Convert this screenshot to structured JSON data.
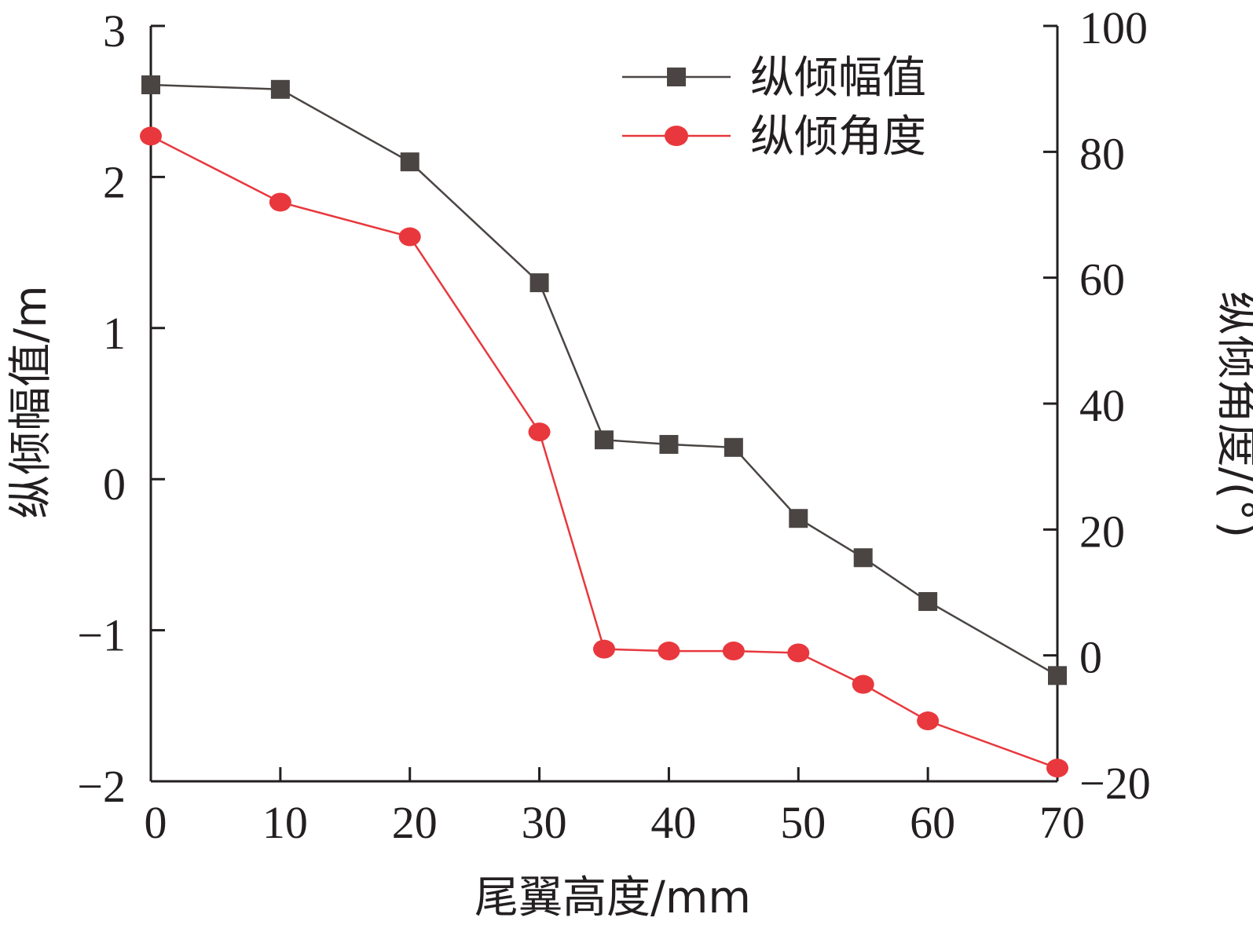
{
  "chart_data": {
    "type": "line",
    "xlabel": "尾翼高度/mm",
    "ylabel_left": "纵倾幅值/m",
    "ylabel_right": "纵倾角度/(°)",
    "xlim": [
      0,
      70
    ],
    "ylim_left": [
      -2,
      3
    ],
    "ylim_right": [
      -20,
      100
    ],
    "x_ticks": [
      "0",
      "10",
      "20",
      "30",
      "40",
      "50",
      "60",
      "70"
    ],
    "y_left_ticks": [
      "3",
      "2",
      "1",
      "0",
      "−1",
      "−2"
    ],
    "y_right_ticks": [
      "100",
      "80",
      "60",
      "40",
      "20",
      "0",
      "−20"
    ],
    "legend_position": "top-right",
    "series": [
      {
        "name": "纵倾幅值",
        "axis": "left",
        "marker": "square",
        "color": "#4a4543",
        "x": [
          0,
          10,
          20,
          30,
          35,
          40,
          45,
          50,
          55,
          60,
          70
        ],
        "values": [
          2.61,
          2.58,
          2.1,
          1.3,
          0.26,
          0.23,
          0.21,
          -0.26,
          -0.52,
          -0.81,
          -1.3
        ]
      },
      {
        "name": "纵倾角度",
        "axis": "right",
        "marker": "circle",
        "color": "#e8383d",
        "x": [
          0,
          10,
          20,
          30,
          35,
          40,
          45,
          50,
          55,
          60,
          70
        ],
        "values": [
          82.5,
          72,
          66.5,
          35.5,
          1,
          0.7,
          0.7,
          0.4,
          -4.6,
          -10.4,
          -17.9
        ]
      }
    ]
  }
}
